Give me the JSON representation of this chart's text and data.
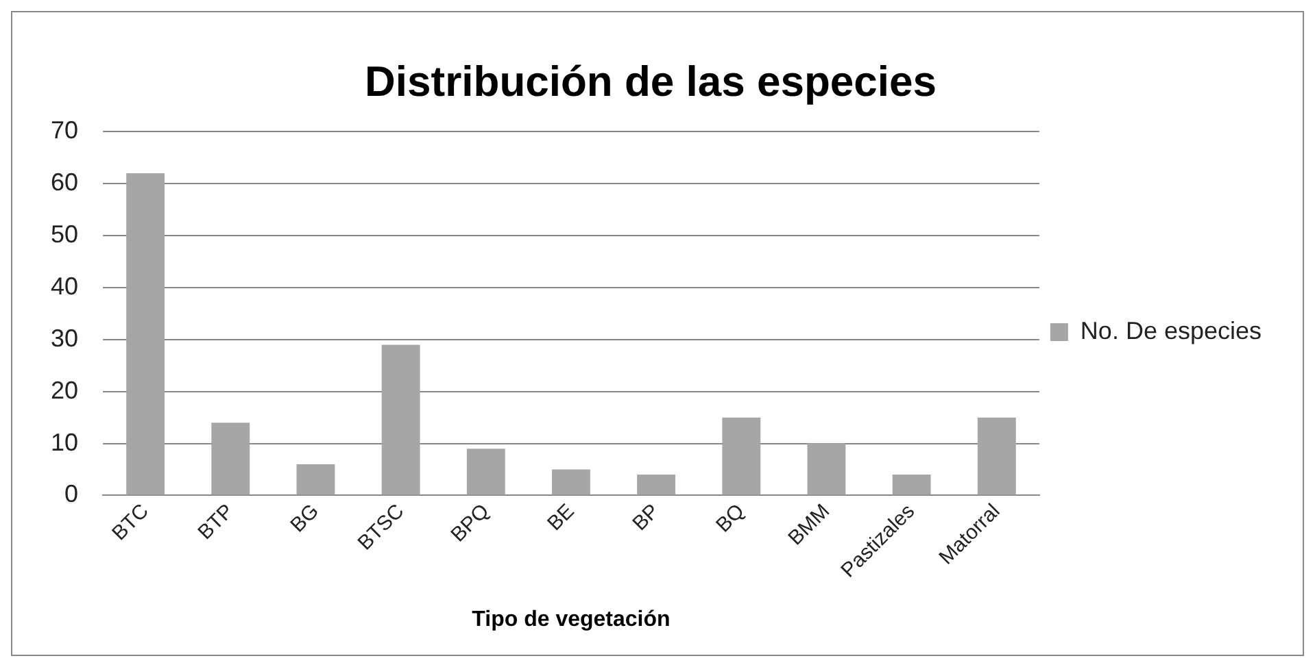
{
  "chart_data": {
    "type": "bar",
    "title": "Distribución de las especies",
    "xlabel": "Tipo de vegetación",
    "categories": [
      "BTC",
      "BTP",
      "BG",
      "BTSC",
      "BPQ",
      "BE",
      "BP",
      "BQ",
      "BMM",
      "Pastizales",
      "Matorral"
    ],
    "series": [
      {
        "name": "No. De especies",
        "color": "#a6a6a6",
        "values": [
          62,
          14,
          6,
          29,
          9,
          5,
          4,
          15,
          10,
          4,
          15
        ]
      }
    ],
    "ylim": [
      0,
      70
    ],
    "yticks": [
      0,
      10,
      20,
      30,
      40,
      50,
      60,
      70
    ],
    "grid": "y",
    "legend": "right"
  }
}
